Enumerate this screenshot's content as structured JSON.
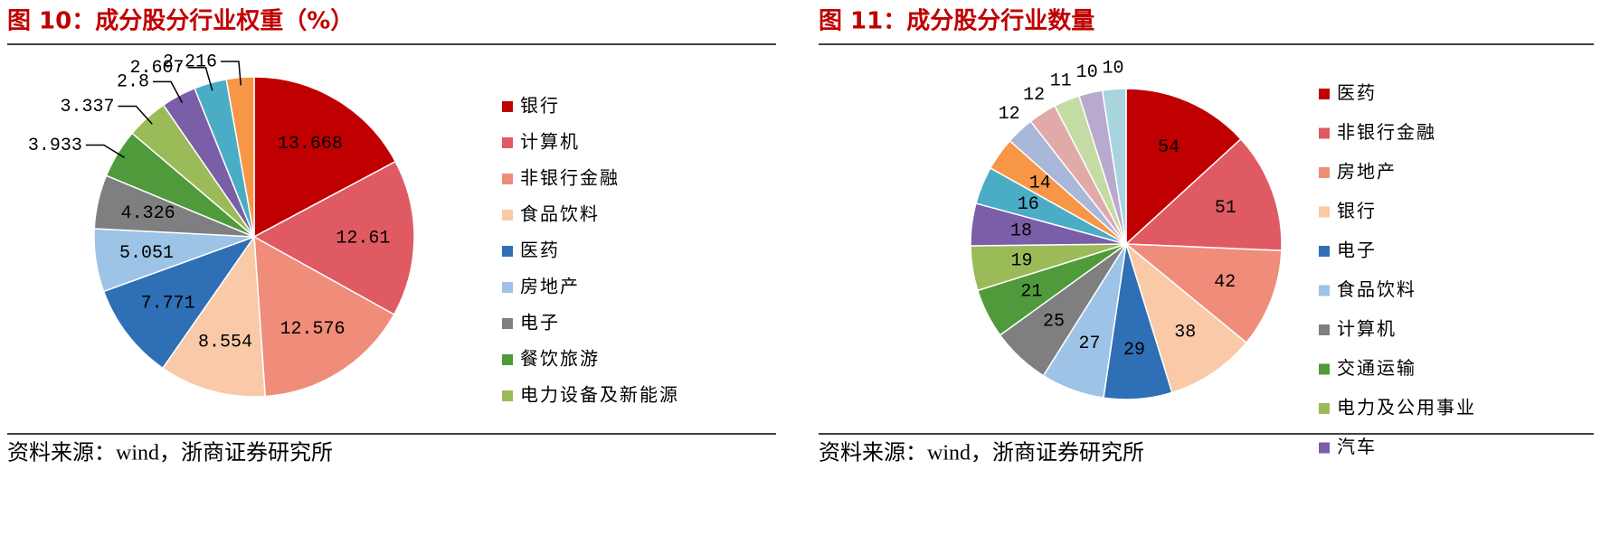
{
  "chart_data": [
    {
      "type": "pie",
      "title": "图 10：成分股分行业权重（%）",
      "source": "资料来源：wind，浙商证券研究所",
      "categories": [
        "银行",
        "计算机",
        "非银行金融",
        "食品饮料",
        "医药",
        "房地产",
        "电子",
        "餐饮旅游",
        "电力设备及新能源",
        null,
        null,
        null
      ],
      "values": [
        13.668,
        12.61,
        12.576,
        8.554,
        7.771,
        5.051,
        4.326,
        3.933,
        3.337,
        2.8,
        2.607,
        2.216
      ],
      "colors": [
        "#c00000",
        "#e05a63",
        "#f08c7a",
        "#f9c9a8",
        "#2e6fb5",
        "#9dc3e6",
        "#7f7f7f",
        "#4f9a3a",
        "#9bbb59",
        "#7a5ea8",
        "#4bacc6",
        "#f79646"
      ],
      "legend": "right"
    },
    {
      "type": "pie",
      "title": "图 11：成分股分行业数量",
      "source": "资料来源：wind，浙商证券研究所",
      "categories": [
        "医药",
        "非银行金融",
        "房地产",
        "银行",
        "电子",
        "食品饮料",
        "计算机",
        "交通运输",
        "电力及公用事业",
        "汽车",
        null,
        null,
        null,
        null,
        null,
        null,
        null
      ],
      "values": [
        54,
        51,
        42,
        38,
        29,
        27,
        25,
        21,
        19,
        18,
        16,
        14,
        12,
        12,
        11,
        10,
        10
      ],
      "colors": [
        "#c00000",
        "#e05a63",
        "#f08c7a",
        "#f9c9a8",
        "#2e6fb5",
        "#9dc3e6",
        "#7f7f7f",
        "#4f9a3a",
        "#9bbb59",
        "#7a5ea8",
        "#4bacc6",
        "#f79646",
        "#a9b8d8",
        "#e2a9a9",
        "#c5dba4",
        "#b9a9cf",
        "#a8d4e0"
      ],
      "legend": "right"
    }
  ]
}
